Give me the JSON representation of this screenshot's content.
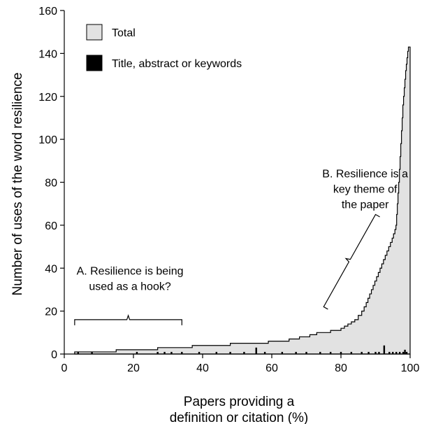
{
  "chart_data": {
    "type": "area",
    "xlabel_lines": [
      "Papers providing a",
      "definition or citation (%)"
    ],
    "ylabel": "Number of uses of the word resilience",
    "xlim": [
      0,
      100
    ],
    "ylim": [
      0,
      160
    ],
    "xticks": [
      0,
      20,
      40,
      60,
      80,
      100
    ],
    "yticks": [
      0,
      20,
      40,
      60,
      80,
      100,
      120,
      140,
      160
    ],
    "grid": false,
    "legend_position": "top-left",
    "series": [
      {
        "name": "Total",
        "color": "#e2e2e2",
        "style": "step-area",
        "points": [
          [
            3,
            1
          ],
          [
            15,
            2
          ],
          [
            27,
            3
          ],
          [
            37,
            4
          ],
          [
            48,
            5
          ],
          [
            59,
            6
          ],
          [
            65,
            7
          ],
          [
            68,
            8
          ],
          [
            71,
            9
          ],
          [
            73,
            10
          ],
          [
            77,
            11
          ],
          [
            80,
            12
          ],
          [
            81,
            13
          ],
          [
            82,
            14
          ],
          [
            83,
            15
          ],
          [
            84,
            16
          ],
          [
            85,
            18
          ],
          [
            86,
            20
          ],
          [
            86.7,
            22
          ],
          [
            87.3,
            24
          ],
          [
            87.8,
            26
          ],
          [
            88.3,
            28
          ],
          [
            88.8,
            30
          ],
          [
            89.3,
            32
          ],
          [
            89.8,
            34
          ],
          [
            90.3,
            36
          ],
          [
            90.8,
            38
          ],
          [
            91.3,
            40
          ],
          [
            91.8,
            42
          ],
          [
            92.3,
            44
          ],
          [
            92.8,
            46
          ],
          [
            93.3,
            48
          ],
          [
            93.8,
            50
          ],
          [
            94.3,
            52
          ],
          [
            94.8,
            54
          ],
          [
            95.2,
            56
          ],
          [
            95.6,
            58
          ],
          [
            95.9,
            60
          ],
          [
            96.1,
            65
          ],
          [
            96.3,
            70
          ],
          [
            96.5,
            75
          ],
          [
            96.7,
            80
          ],
          [
            96.9,
            86
          ],
          [
            97.1,
            92
          ],
          [
            97.3,
            98
          ],
          [
            97.5,
            104
          ],
          [
            97.7,
            110
          ],
          [
            97.9,
            116
          ],
          [
            98.1,
            120
          ],
          [
            98.3,
            124
          ],
          [
            98.5,
            128
          ],
          [
            98.7,
            132
          ],
          [
            98.9,
            135
          ],
          [
            99.1,
            138
          ],
          [
            99.3,
            141
          ],
          [
            99.5,
            143
          ],
          [
            100,
            143
          ]
        ]
      },
      {
        "name": "Title, abstract or keywords",
        "color": "#000000",
        "style": "bars",
        "points": [
          [
            4,
            1
          ],
          [
            8,
            1
          ],
          [
            21,
            1
          ],
          [
            27,
            1
          ],
          [
            29,
            1
          ],
          [
            31,
            1
          ],
          [
            34,
            1
          ],
          [
            39,
            1
          ],
          [
            44,
            1
          ],
          [
            48,
            1
          ],
          [
            52,
            1
          ],
          [
            55.5,
            3
          ],
          [
            58,
            1
          ],
          [
            63,
            1
          ],
          [
            67,
            1
          ],
          [
            70,
            1
          ],
          [
            74,
            1
          ],
          [
            77,
            1
          ],
          [
            80,
            1
          ],
          [
            83,
            1
          ],
          [
            86,
            1
          ],
          [
            88,
            1
          ],
          [
            90,
            1
          ],
          [
            91,
            1
          ],
          [
            92.5,
            4
          ],
          [
            94,
            1
          ],
          [
            95,
            1
          ],
          [
            96,
            1
          ],
          [
            97,
            1
          ],
          [
            98,
            1
          ],
          [
            98.5,
            2
          ],
          [
            99,
            1
          ]
        ]
      }
    ],
    "annotations": [
      {
        "lines": [
          "A. Resilience is being",
          "used as a hook?"
        ],
        "bracket_x": [
          3,
          34
        ],
        "bracket_y": 16,
        "text_x": 19,
        "text_y": 37
      },
      {
        "lines": [
          "B. Resilience is a",
          "key theme of",
          "the paper"
        ],
        "bracket_from": [
          75,
          22
        ],
        "bracket_to": [
          90,
          65
        ],
        "text_x": 87,
        "text_y": 68
      }
    ]
  }
}
